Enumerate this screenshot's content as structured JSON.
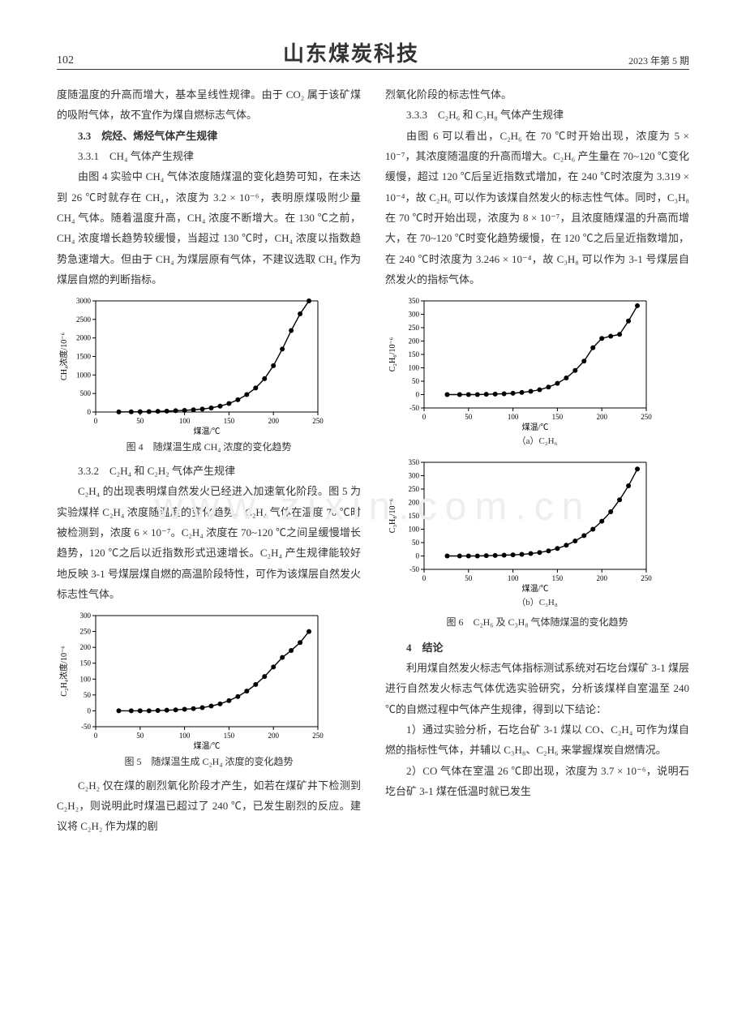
{
  "page": {
    "number": "102",
    "journal_title": "山东煤炭科技",
    "issue": "2023 年第 5 期",
    "bg_color": "#ffffff",
    "text_color": "#333333"
  },
  "left_col": {
    "p1": "度随温度的升高而增大，基本呈线性规律。由于 CO₂ 属于该矿煤的吸附气体，故不宜作为煤自燃标志气体。",
    "sec33": "3.3　烷烃、烯烃气体产生规律",
    "sec331": "3.3.1　CH₄ 气体产生规律",
    "p2": "由图 4 实验中 CH₄ 气体浓度随煤温的变化趋势可知，在未达到 26 ℃时就存在 CH₄，浓度为 3.2 × 10⁻⁶，表明原煤吸附少量 CH₄ 气体。随着温度升高，CH₄ 浓度不断增大。在 130 ℃之前，CH₄ 浓度增长趋势较缓慢，当超过 130 ℃时，CH₄ 浓度以指数趋势急速增大。但由于 CH₄ 为煤层原有气体，不建议选取 CH₄ 作为煤层自燃的判断指标。",
    "fig4_caption": "图 4　随煤温生成 CH₄ 浓度的变化趋势",
    "sec332": "3.3.2　C₂H₄ 和 C₂H₂ 气体产生规律",
    "p3": "C₂H₄ 的出现表明煤自然发火已经进入加速氧化阶段。图 5 为实验煤样 C₂H₄ 浓度随温度的变化趋势。C₂H₄ 气体在温度 70 ℃时被检测到，浓度 6 × 10⁻⁷。C₂H₄ 浓度在 70~120 ℃之间呈缓慢增长趋势，120 ℃之后以近指数形式迅速增长。C₂H₄ 产生规律能较好地反映 3-1 号煤层煤自燃的高温阶段特性，可作为该煤层自然发火标志性气体。",
    "fig5_caption": "图 5　随煤温生成 C₂H₄ 浓度的变化趋势",
    "p4": "C₂H₂ 仅在煤的剧烈氧化阶段才产生，如若在煤矿井下检测到 C₂H₂，则说明此时煤温已超过了 240 ℃，已发生剧烈的反应。建议将 C₂H₂ 作为煤的剧"
  },
  "right_col": {
    "p1": "烈氧化阶段的标志性气体。",
    "sec333": "3.3.3　C₂H₆ 和 C₃H₈ 气体产生规律",
    "p2": "由图 6 可以看出，C₂H₆ 在 70 ℃时开始出现，浓度为 5 × 10⁻⁷，其浓度随温度的升高而增大。C₂H₆ 产生量在 70~120 ℃变化缓慢，超过 120 ℃后呈近指数式增加，在 240 ℃时浓度为 3.319 × 10⁻⁴，故 C₂H₆ 可以作为该煤自然发火的标志性气体。同时，C₃H₈ 在 70 ℃时开始出现，浓度为 8 × 10⁻⁷，且浓度随煤温的升高而增大，在 70~120 ℃时变化趋势缓慢，在 120 ℃之后呈近指数增加，在 240 ℃时浓度为 3.246 × 10⁻⁴，故 C₃H₈ 可以作为 3-1 号煤层自然发火的指标气体。",
    "fig6a_sub": "（a）C₂H₆",
    "fig6b_sub": "（b）C₃H₈",
    "fig6_caption": "图 6　C₂H₆ 及 C₃H₈ 气体随煤温的变化趋势",
    "sec4": "4　结论",
    "p3": "利用煤自然发火标志气体指标测试系统对石圪台煤矿 3-1 煤层进行自然发火标志气体优选实验研究，分析该煤样自室温至 240 ℃的自燃过程中气体产生规律，得到以下结论：",
    "p4": "1）通过实验分析，石圪台矿 3-1 煤以 CO、C₂H₄ 可作为煤自燃的指标性气体，并辅以 C₃H₈、C₂H₆ 来掌握煤炭自燃情况。",
    "p5": "2）CO 气体在室温 26 ℃即出现，浓度为 3.7 × 10⁻⁶，说明石圪台矿 3-1 煤在低温时就已发生"
  },
  "charts": {
    "common": {
      "line_color": "#000000",
      "marker_color": "#000000",
      "marker_style": "circle",
      "marker_size": 3,
      "line_width": 1.4,
      "axis_color": "#000000",
      "axis_width": 1,
      "font_size": 9,
      "bg": "#ffffff"
    },
    "fig4": {
      "type": "line",
      "xlabel": "煤温/℃",
      "ylabel": "CH₄浓度/10⁻⁶",
      "xlim": [
        0,
        250
      ],
      "xtick_step": 50,
      "ylim": [
        0,
        3000
      ],
      "ytick_step": 500,
      "x": [
        26,
        40,
        50,
        60,
        70,
        80,
        90,
        100,
        110,
        120,
        130,
        140,
        150,
        160,
        170,
        180,
        190,
        200,
        210,
        220,
        230,
        240
      ],
      "y": [
        3,
        5,
        8,
        12,
        18,
        25,
        35,
        45,
        60,
        80,
        110,
        160,
        230,
        330,
        470,
        650,
        900,
        1250,
        1700,
        2200,
        2650,
        3000
      ]
    },
    "fig5": {
      "type": "line",
      "xlabel": "煤温/℃",
      "ylabel": "C₂H₄浓度/10⁻⁶",
      "xlim": [
        0,
        250
      ],
      "xtick_step": 50,
      "ylim": [
        -50,
        300
      ],
      "ytick_step": 50,
      "x": [
        26,
        40,
        50,
        60,
        70,
        80,
        90,
        100,
        110,
        120,
        130,
        140,
        150,
        160,
        170,
        180,
        190,
        200,
        210,
        220,
        230,
        240
      ],
      "y": [
        0,
        0,
        0,
        0,
        1,
        2,
        3,
        5,
        7,
        10,
        15,
        22,
        32,
        45,
        62,
        83,
        108,
        138,
        168,
        190,
        215,
        250
      ]
    },
    "fig6a": {
      "type": "line",
      "xlabel": "煤温/℃",
      "ylabel": "C₂H₆/10⁻⁶",
      "xlim": [
        0,
        250
      ],
      "xtick_step": 50,
      "ylim": [
        -50,
        350
      ],
      "ytick_step": 50,
      "x": [
        26,
        40,
        50,
        60,
        70,
        80,
        90,
        100,
        110,
        120,
        130,
        140,
        150,
        160,
        170,
        180,
        190,
        200,
        210,
        220,
        230,
        240
      ],
      "y": [
        0,
        0,
        0,
        0,
        1,
        2,
        3,
        5,
        8,
        12,
        18,
        28,
        42,
        62,
        90,
        125,
        175,
        210,
        218,
        225,
        275,
        332
      ]
    },
    "fig6b": {
      "type": "line",
      "xlabel": "煤温/℃",
      "ylabel": "C₃H₈/10⁻⁶",
      "xlim": [
        0,
        250
      ],
      "xtick_step": 50,
      "ylim": [
        -50,
        350
      ],
      "ytick_step": 50,
      "x": [
        26,
        40,
        50,
        60,
        70,
        80,
        90,
        100,
        110,
        120,
        130,
        140,
        150,
        160,
        170,
        180,
        190,
        200,
        210,
        220,
        230,
        240
      ],
      "y": [
        0,
        0,
        0,
        0,
        1,
        2,
        3,
        4,
        6,
        9,
        13,
        19,
        28,
        40,
        56,
        76,
        100,
        130,
        165,
        210,
        262,
        325
      ]
    }
  }
}
